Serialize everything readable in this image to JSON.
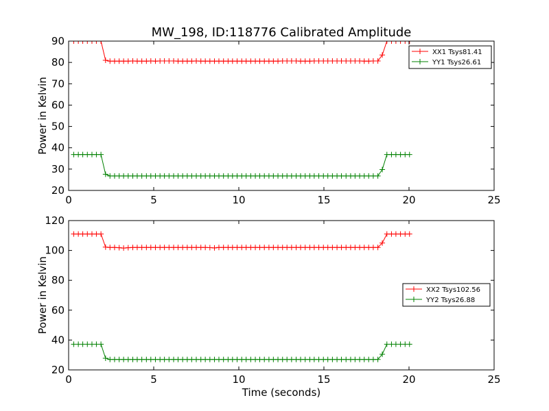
{
  "chart_data": [
    {
      "type": "line",
      "title": "MW_198, ID:118776 Calibrated Amplitude",
      "xlabel": "",
      "ylabel": "Power in Kelvin",
      "xlim": [
        0,
        25
      ],
      "ylim": [
        20,
        90
      ],
      "xticks": [
        0,
        5,
        10,
        15,
        20,
        25
      ],
      "yticks": [
        20,
        30,
        40,
        50,
        60,
        70,
        80,
        90
      ],
      "legend_position": "upper right",
      "series": [
        {
          "name": "XX1 Tsys81.41",
          "color": "#ff0000",
          "x": [
            0.3,
            0.57,
            0.83,
            1.1,
            1.37,
            1.63,
            1.9,
            2.17,
            2.43,
            2.7,
            2.97,
            3.23,
            3.5,
            3.77,
            4.03,
            4.3,
            4.57,
            4.83,
            5.1,
            5.37,
            5.63,
            5.9,
            6.17,
            6.43,
            6.7,
            6.97,
            7.23,
            7.5,
            7.77,
            8.03,
            8.3,
            8.57,
            8.83,
            9.1,
            9.37,
            9.63,
            9.9,
            10.17,
            10.43,
            10.7,
            10.97,
            11.23,
            11.5,
            11.77,
            12.03,
            12.3,
            12.57,
            12.83,
            13.1,
            13.37,
            13.63,
            13.9,
            14.17,
            14.43,
            14.7,
            14.97,
            15.23,
            15.5,
            15.77,
            16.03,
            16.3,
            16.57,
            16.83,
            17.1,
            17.37,
            17.63,
            17.9,
            18.17,
            18.43,
            18.7,
            18.97,
            19.23,
            19.5,
            19.77,
            20.03
          ],
          "values": [
            90,
            90,
            90,
            90,
            90,
            90,
            90,
            81,
            80.6,
            80.6,
            80.6,
            80.6,
            80.6,
            80.7,
            80.6,
            80.6,
            80.6,
            80.7,
            80.6,
            80.7,
            80.7,
            80.7,
            80.7,
            80.6,
            80.6,
            80.6,
            80.6,
            80.7,
            80.6,
            80.6,
            80.6,
            80.6,
            80.6,
            80.6,
            80.6,
            80.6,
            80.6,
            80.6,
            80.6,
            80.6,
            80.6,
            80.6,
            80.6,
            80.6,
            80.6,
            80.6,
            80.7,
            80.7,
            80.7,
            80.7,
            80.6,
            80.6,
            80.6,
            80.7,
            80.7,
            80.7,
            80.7,
            80.7,
            80.7,
            80.7,
            80.7,
            80.7,
            80.7,
            80.7,
            80.6,
            80.6,
            80.7,
            80.7,
            83.5,
            90,
            90,
            90,
            90,
            90,
            90
          ]
        },
        {
          "name": "YY1 Tsys26.61",
          "color": "#008000",
          "x": [
            0.3,
            0.57,
            0.83,
            1.1,
            1.37,
            1.63,
            1.9,
            2.17,
            2.43,
            2.7,
            2.97,
            3.23,
            3.5,
            3.77,
            4.03,
            4.3,
            4.57,
            4.83,
            5.1,
            5.37,
            5.63,
            5.9,
            6.17,
            6.43,
            6.7,
            6.97,
            7.23,
            7.5,
            7.77,
            8.03,
            8.3,
            8.57,
            8.83,
            9.1,
            9.37,
            9.63,
            9.9,
            10.17,
            10.43,
            10.7,
            10.97,
            11.23,
            11.5,
            11.77,
            12.03,
            12.3,
            12.57,
            12.83,
            13.1,
            13.37,
            13.63,
            13.9,
            14.17,
            14.43,
            14.7,
            14.97,
            15.23,
            15.5,
            15.77,
            16.03,
            16.3,
            16.57,
            16.83,
            17.1,
            17.37,
            17.63,
            17.9,
            18.17,
            18.43,
            18.7,
            18.97,
            19.23,
            19.5,
            19.77,
            20.03
          ],
          "values": [
            36.8,
            36.8,
            36.8,
            36.8,
            36.8,
            36.8,
            36.8,
            27.6,
            26.8,
            26.8,
            26.8,
            26.8,
            26.8,
            26.8,
            26.8,
            26.8,
            26.8,
            26.8,
            26.8,
            26.8,
            26.8,
            26.8,
            26.8,
            26.8,
            26.8,
            26.8,
            26.8,
            26.8,
            26.8,
            26.8,
            26.8,
            26.8,
            26.8,
            26.8,
            26.8,
            26.8,
            26.8,
            26.8,
            26.8,
            26.8,
            26.8,
            26.8,
            26.8,
            26.8,
            26.8,
            26.8,
            26.8,
            26.8,
            26.8,
            26.8,
            26.8,
            26.8,
            26.8,
            26.8,
            26.8,
            26.8,
            26.8,
            26.8,
            26.8,
            26.8,
            26.8,
            26.8,
            26.8,
            26.8,
            26.8,
            26.8,
            26.8,
            26.8,
            29.8,
            36.8,
            36.8,
            36.8,
            36.8,
            36.8,
            36.8
          ]
        }
      ]
    },
    {
      "type": "line",
      "title": "",
      "xlabel": "Time (seconds)",
      "ylabel": "Power in Kelvin",
      "xlim": [
        0,
        25
      ],
      "ylim": [
        20,
        120
      ],
      "xticks": [
        0,
        5,
        10,
        15,
        20,
        25
      ],
      "yticks": [
        20,
        40,
        60,
        80,
        100,
        120
      ],
      "legend_position": "center right",
      "series": [
        {
          "name": "XX2 Tsys102.56",
          "color": "#ff0000",
          "x": [
            0.3,
            0.57,
            0.83,
            1.1,
            1.37,
            1.63,
            1.9,
            2.17,
            2.43,
            2.7,
            2.97,
            3.23,
            3.5,
            3.77,
            4.03,
            4.3,
            4.57,
            4.83,
            5.1,
            5.37,
            5.63,
            5.9,
            6.17,
            6.43,
            6.7,
            6.97,
            7.23,
            7.5,
            7.77,
            8.03,
            8.3,
            8.57,
            8.83,
            9.1,
            9.37,
            9.63,
            9.9,
            10.17,
            10.43,
            10.7,
            10.97,
            11.23,
            11.5,
            11.77,
            12.03,
            12.3,
            12.57,
            12.83,
            13.1,
            13.37,
            13.63,
            13.9,
            14.17,
            14.43,
            14.7,
            14.97,
            15.23,
            15.5,
            15.77,
            16.03,
            16.3,
            16.57,
            16.83,
            17.1,
            17.37,
            17.63,
            17.9,
            18.17,
            18.43,
            18.7,
            18.97,
            19.23,
            19.5,
            19.77,
            20.03
          ],
          "values": [
            111,
            111,
            111,
            111,
            111,
            111,
            111,
            102.2,
            102,
            102,
            101.8,
            101.6,
            101.8,
            102,
            102,
            102,
            102,
            102,
            102,
            102,
            102,
            102,
            102,
            102,
            102,
            102,
            102,
            102,
            102,
            102,
            101.9,
            101.7,
            102,
            102,
            102,
            102,
            102,
            102,
            102,
            102,
            102,
            102,
            102,
            102,
            102,
            102,
            102,
            102,
            102,
            102,
            102,
            102,
            102,
            102,
            102,
            102,
            102,
            102,
            102,
            102,
            102,
            102,
            102,
            102,
            102,
            102,
            102,
            102,
            105,
            111,
            111,
            111,
            111,
            111,
            111
          ]
        },
        {
          "name": "YY2 Tsys26.88",
          "color": "#008000",
          "x": [
            0.3,
            0.57,
            0.83,
            1.1,
            1.37,
            1.63,
            1.9,
            2.17,
            2.43,
            2.7,
            2.97,
            3.23,
            3.5,
            3.77,
            4.03,
            4.3,
            4.57,
            4.83,
            5.1,
            5.37,
            5.63,
            5.9,
            6.17,
            6.43,
            6.7,
            6.97,
            7.23,
            7.5,
            7.77,
            8.03,
            8.3,
            8.57,
            8.83,
            9.1,
            9.37,
            9.63,
            9.9,
            10.17,
            10.43,
            10.7,
            10.97,
            11.23,
            11.5,
            11.77,
            12.03,
            12.3,
            12.57,
            12.83,
            13.1,
            13.37,
            13.63,
            13.9,
            14.17,
            14.43,
            14.7,
            14.97,
            15.23,
            15.5,
            15.77,
            16.03,
            16.3,
            16.57,
            16.83,
            17.1,
            17.37,
            17.63,
            17.9,
            18.17,
            18.43,
            18.7,
            18.97,
            19.23,
            19.5,
            19.77,
            20.03
          ],
          "values": [
            37.2,
            37.2,
            37.2,
            37.2,
            37.2,
            37.2,
            37.2,
            27.8,
            27,
            27,
            27,
            27,
            27,
            27,
            27,
            27,
            27,
            27,
            27,
            27,
            27,
            27,
            27,
            27,
            27,
            27,
            27,
            27,
            27,
            27,
            27,
            27,
            27,
            27,
            27,
            27,
            27,
            27,
            27,
            27,
            27,
            27,
            27,
            27,
            27,
            27,
            27,
            27,
            27,
            27,
            27,
            27,
            27,
            27,
            27,
            27,
            27,
            27,
            27,
            27,
            27,
            27,
            27,
            27,
            27,
            27,
            27,
            27,
            30.5,
            37.2,
            37.2,
            37.2,
            37.2,
            37.2,
            37.2
          ]
        }
      ]
    }
  ]
}
